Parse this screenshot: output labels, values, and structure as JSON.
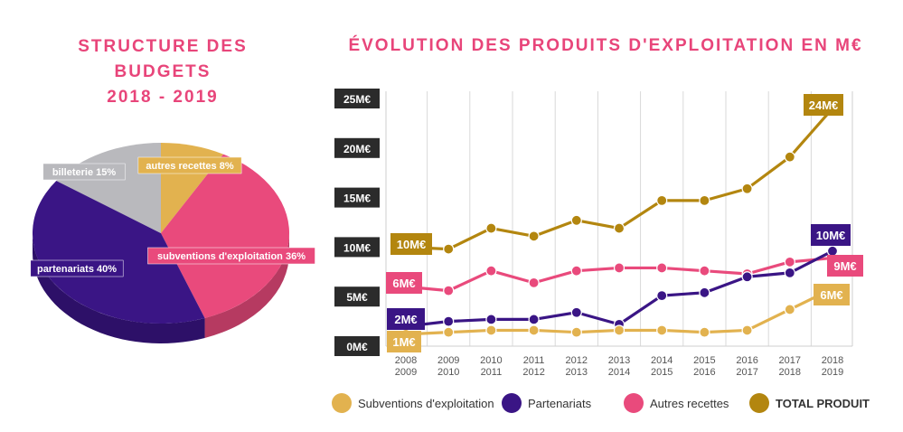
{
  "pie_title_line1": "STRUCTURE DES BUDGETS",
  "pie_title_line2": "2018 - 2019",
  "line_title": "ÉVOLUTION DES PRODUITS D'EXPLOITATION EN M€",
  "colors": {
    "subventions": "#e2b24f",
    "partenariats": "#3a1585",
    "autres": "#e94a7c",
    "total": "#b3860f",
    "billeterie": "#b9b9bd",
    "title": "#e8457a"
  },
  "chart_data": [
    {
      "type": "pie",
      "title": "STRUCTURE DES BUDGETS 2018 - 2019",
      "slices": [
        {
          "label": "autres recettes 8%",
          "value": 8,
          "color": "#e2b24f"
        },
        {
          "label": "subventions d'exploitation 36%",
          "value": 36,
          "color": "#e94a7c"
        },
        {
          "label": "partenariats 40%",
          "value": 40,
          "color": "#3a1585"
        },
        {
          "label": "billeterie 15%",
          "value": 15,
          "color": "#b9b9bd"
        }
      ]
    },
    {
      "type": "line",
      "title": "ÉVOLUTION DES PRODUITS D'EXPLOITATION EN M€",
      "categories": [
        "2008\n2009",
        "2009\n2010",
        "2010\n2011",
        "2011\n2012",
        "2012\n2013",
        "2013\n2014",
        "2014\n2015",
        "2015\n2016",
        "2016\n2017",
        "2017\n2018",
        "2018\n2019"
      ],
      "yticks": [
        "0M€",
        "5M€",
        "10M€",
        "15M€",
        "20M€",
        "25M€"
      ],
      "ylim": [
        0,
        25
      ],
      "series": [
        {
          "name": "Subventions d'exploitation",
          "key": "subventions",
          "values": [
            1.2,
            1.4,
            1.6,
            1.6,
            1.4,
            1.6,
            1.6,
            1.4,
            1.6,
            3.7,
            5.8
          ]
        },
        {
          "name": "Partenariats",
          "key": "partenariats",
          "values": [
            2.0,
            2.5,
            2.7,
            2.7,
            3.4,
            2.2,
            5.1,
            5.4,
            7.0,
            7.4,
            9.6
          ]
        },
        {
          "name": "Autres recettes",
          "key": "autres",
          "values": [
            6.0,
            5.6,
            7.6,
            6.4,
            7.6,
            7.9,
            7.9,
            7.6,
            7.3,
            8.5,
            8.9
          ]
        },
        {
          "name": "TOTAL PRODUIT",
          "key": "total",
          "values": [
            10.0,
            9.8,
            11.9,
            11.1,
            12.7,
            11.9,
            14.7,
            14.7,
            15.9,
            19.1,
            24.0
          ]
        }
      ],
      "annotations": {
        "subventions": {
          "start": "1M€",
          "end": "6M€"
        },
        "partenariats": {
          "start": "2M€",
          "end": "10M€"
        },
        "autres": {
          "start": "6M€",
          "end": "9M€"
        },
        "total": {
          "start": "10M€",
          "end": "24M€"
        }
      },
      "legend_position": "bottom"
    }
  ]
}
